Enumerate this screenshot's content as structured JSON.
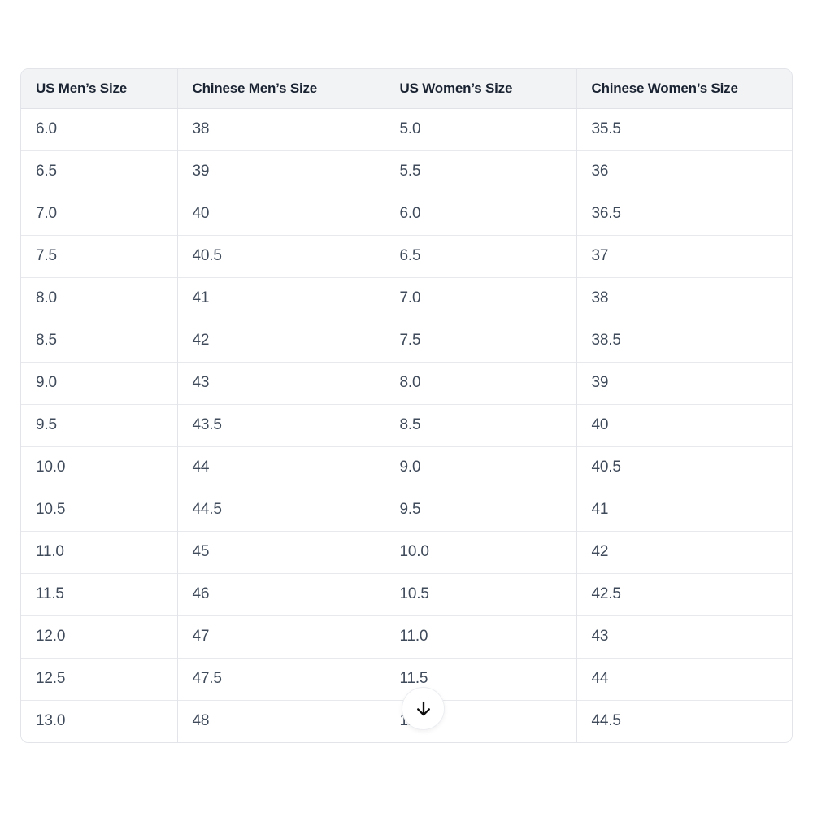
{
  "page": {
    "background": "#ffffff"
  },
  "table": {
    "columns": [
      "US Men’s Size",
      "Chinese Men’s Size",
      "US Women’s Size",
      "Chinese Women’s Size"
    ],
    "rows": [
      [
        "6.0",
        "38",
        "5.0",
        "35.5"
      ],
      [
        "6.5",
        "39",
        "5.5",
        "36"
      ],
      [
        "7.0",
        "40",
        "6.0",
        "36.5"
      ],
      [
        "7.5",
        "40.5",
        "6.5",
        "37"
      ],
      [
        "8.0",
        "41",
        "7.0",
        "38"
      ],
      [
        "8.5",
        "42",
        "7.5",
        "38.5"
      ],
      [
        "9.0",
        "43",
        "8.0",
        "39"
      ],
      [
        "9.5",
        "43.5",
        "8.5",
        "40"
      ],
      [
        "10.0",
        "44",
        "9.0",
        "40.5"
      ],
      [
        "10.5",
        "44.5",
        "9.5",
        "41"
      ],
      [
        "11.0",
        "45",
        "10.0",
        "42"
      ],
      [
        "11.5",
        "46",
        "10.5",
        "42.5"
      ],
      [
        "12.0",
        "47",
        "11.0",
        "43"
      ],
      [
        "12.5",
        "47.5",
        "11.5",
        "44"
      ],
      [
        "13.0",
        "48",
        "12.0",
        "44.5"
      ]
    ],
    "colors": {
      "header_bg": "#f2f3f5",
      "header_text": "#1a2332",
      "cell_text": "#3f4a5a",
      "border": "#e2e4e9",
      "row_divider": "#e7e9ec"
    }
  },
  "scroll_button": {
    "icon": "arrow-down-icon",
    "symbol": "↓",
    "arrow_color": "#0d0d0d",
    "background": "#ffffff"
  }
}
